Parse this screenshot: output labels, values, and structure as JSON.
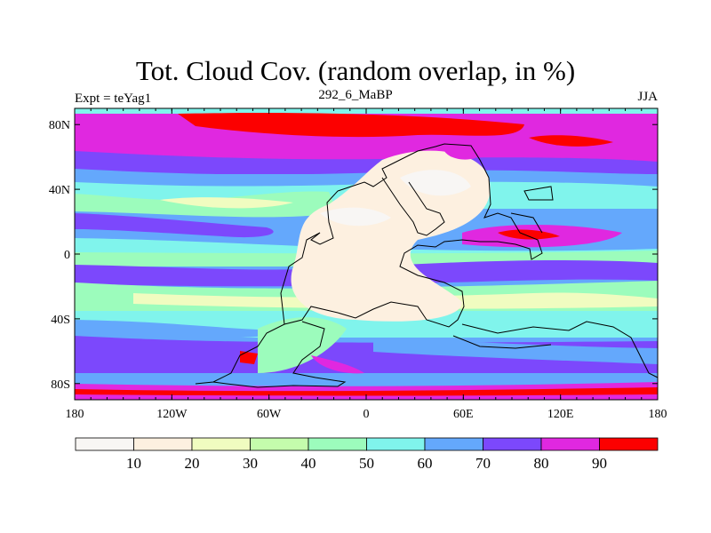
{
  "title": "Tot. Cloud Cov. (random overlap, in %)",
  "left_subtitle": "Expt = teYag1",
  "center_subtitle": "292_6_MaBP",
  "right_subtitle": "JJA",
  "map": {
    "lon_range": [
      -180,
      180
    ],
    "lat_range": [
      -90,
      90
    ],
    "lon_ticks": [
      {
        "v": -180,
        "label": "180"
      },
      {
        "v": -120,
        "label": "120W"
      },
      {
        "v": -60,
        "label": "60W"
      },
      {
        "v": 0,
        "label": "0"
      },
      {
        "v": 60,
        "label": "60E"
      },
      {
        "v": 120,
        "label": "120E"
      },
      {
        "v": 180,
        "label": "180"
      }
    ],
    "lat_ticks": [
      {
        "v": 80,
        "label": "80N"
      },
      {
        "v": 40,
        "label": "40N"
      },
      {
        "v": 0,
        "label": "0"
      },
      {
        "v": -40,
        "label": "40S"
      },
      {
        "v": -80,
        "label": "80S"
      }
    ]
  },
  "colorbar": {
    "levels": [
      "10",
      "20",
      "30",
      "40",
      "50",
      "60",
      "70",
      "80",
      "90"
    ],
    "colors": [
      "#f8f6f4",
      "#fdf0e0",
      "#f0fcc0",
      "#c4fcac",
      "#9cfcbc",
      "#80f4ec",
      "#64a8fc",
      "#7c48fc",
      "#e028e0",
      "#fc0000"
    ]
  }
}
